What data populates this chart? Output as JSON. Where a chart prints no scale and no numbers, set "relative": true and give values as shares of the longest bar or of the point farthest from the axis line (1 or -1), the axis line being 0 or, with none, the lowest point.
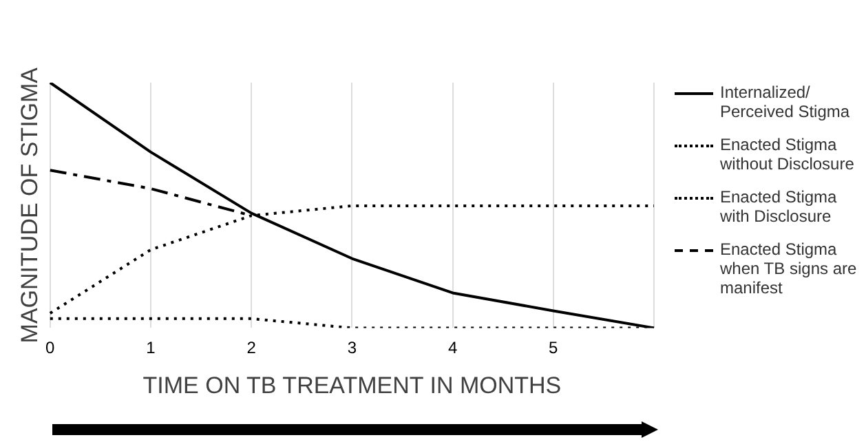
{
  "chart_data": {
    "type": "line",
    "relative": true,
    "ylabel": "MAGNITUDE OF STIGMA",
    "xlabel": "TIME ON TB TREATMENT IN MONTHS",
    "categories": [
      "0",
      "1",
      "2",
      "3",
      "4",
      "5",
      null
    ],
    "grid": "x",
    "legend": "right",
    "tick_labels": "x",
    "marker": "none",
    "series": [
      {
        "name": "Internalized/ Perceived Stigma",
        "color": "#000000",
        "line_style": "solid",
        "values": [
          1,
          0.717,
          0.468,
          0.283,
          0.143,
          0.07,
          0
        ]
      },
      {
        "name": "Enacted Stigma without Disclosure",
        "color": "#000000",
        "line_style": "dotted",
        "values": [
          0.038,
          0.038,
          0.038,
          0,
          0,
          0,
          0
        ]
      },
      {
        "name": "Enacted Stigma with Disclosure",
        "color": "#000000",
        "line_style": "dotted",
        "values": [
          0.06,
          0.319,
          0.458,
          0.498,
          0.498,
          0.498,
          0.498
        ]
      },
      {
        "name": "Enacted Stigma when TB signs are manifest",
        "color": "#000000",
        "line_style": "dashed",
        "values": [
          0.643,
          0.568,
          0.458,
          null,
          null,
          null,
          null
        ]
      }
    ]
  }
}
